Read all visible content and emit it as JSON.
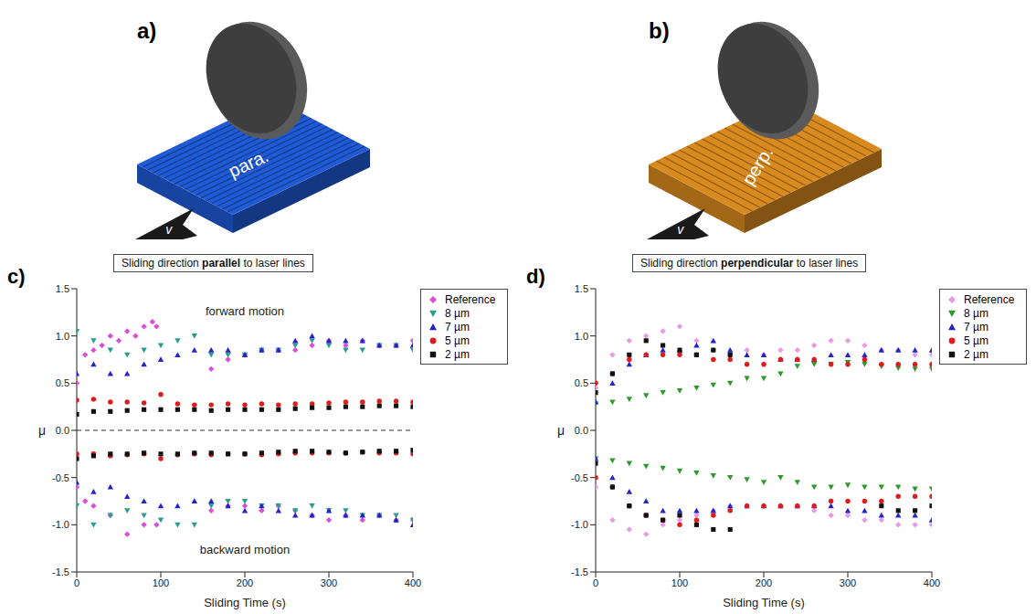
{
  "schematics": [
    {
      "panel": "a)",
      "label": "para.",
      "velocity": "v⃗",
      "color": "#1f5bd6"
    },
    {
      "panel": "b)",
      "label": "perp.",
      "velocity": "v⃗",
      "color": "#d98a1e"
    }
  ],
  "chart_data": [
    {
      "type": "scatter",
      "panel": "c)",
      "title": "Sliding direction parallel to laser lines",
      "x_label": "Sliding Time (s)",
      "y_label": "μ",
      "annotations": [
        "forward motion",
        "backward motion"
      ],
      "hlines": [
        0
      ],
      "xlim": [
        0,
        400
      ],
      "xticks": [
        0,
        100,
        200,
        300,
        400
      ],
      "ylim": [
        -1.5,
        1.5
      ],
      "yticks": [
        -1.5,
        {
          "value": -1,
          "label": "-1.0"
        },
        -0.5,
        {
          "value": 0,
          "label": "0.0"
        },
        0.5,
        {
          "value": 1,
          "label": "1.0"
        },
        1.5
      ],
      "legend": "right",
      "series": [
        {
          "name": "Reference",
          "color": "#d94fd9",
          "marker": "diamond",
          "x": [
            0,
            10,
            20,
            30,
            40,
            50,
            60,
            70,
            80,
            90,
            95,
            160,
            180,
            200,
            220,
            240,
            260,
            280,
            300,
            320,
            340,
            360,
            380,
            400,
            0,
            10,
            20,
            40,
            60,
            80,
            95,
            160,
            180,
            200,
            220,
            240,
            260,
            280,
            300,
            320,
            340,
            360,
            380,
            400
          ],
          "values": [
            0.5,
            0.8,
            0.85,
            0.9,
            1.0,
            0.95,
            1.05,
            1.0,
            1.1,
            1.15,
            1.1,
            0.65,
            0.75,
            0.8,
            0.85,
            0.85,
            0.85,
            0.9,
            0.95,
            0.9,
            0.95,
            0.9,
            0.9,
            0.95,
            -0.6,
            -0.75,
            -0.8,
            -0.9,
            -1.1,
            -1.0,
            -1.0,
            -0.85,
            -0.8,
            -0.8,
            -0.85,
            -0.8,
            -0.85,
            -0.9,
            -0.95,
            -0.9,
            -0.95,
            -0.9,
            -0.95,
            -0.95
          ]
        },
        {
          "name": "8 µm",
          "color": "#2a9d8f",
          "marker": "triangle_down",
          "x": [
            0,
            20,
            40,
            60,
            80,
            100,
            120,
            140,
            160,
            180,
            200,
            220,
            240,
            260,
            280,
            300,
            320,
            340,
            360,
            380,
            400,
            0,
            20,
            40,
            60,
            80,
            100,
            120,
            140,
            160,
            180,
            200,
            220,
            240,
            260,
            280,
            300,
            320,
            340,
            360,
            380,
            400
          ],
          "values": [
            1.05,
            0.95,
            0.85,
            0.8,
            0.85,
            0.9,
            0.95,
            1.0,
            0.8,
            0.8,
            0.8,
            0.85,
            0.85,
            0.9,
            0.95,
            0.9,
            0.85,
            0.85,
            0.9,
            0.9,
            0.85,
            -0.8,
            -1.0,
            -0.9,
            -0.85,
            -0.9,
            -0.95,
            -1.0,
            -1.0,
            -0.8,
            -0.75,
            -0.75,
            -0.8,
            -0.8,
            -0.85,
            -0.8,
            -0.85,
            -0.85,
            -0.9,
            -0.9,
            -0.9,
            -0.95
          ]
        },
        {
          "name": "7 µm",
          "color": "#2323c8",
          "marker": "triangle_up",
          "x": [
            0,
            20,
            40,
            60,
            80,
            100,
            120,
            140,
            160,
            180,
            200,
            220,
            240,
            260,
            280,
            300,
            320,
            340,
            360,
            380,
            400,
            0,
            20,
            40,
            60,
            80,
            100,
            120,
            140,
            160,
            180,
            200,
            220,
            240,
            260,
            280,
            300,
            320,
            340,
            360,
            380,
            400
          ],
          "values": [
            0.6,
            0.7,
            0.6,
            0.6,
            0.7,
            0.75,
            0.8,
            0.85,
            0.85,
            0.85,
            0.8,
            0.85,
            0.85,
            0.95,
            1.0,
            0.95,
            0.95,
            0.95,
            0.9,
            0.9,
            0.9,
            -0.55,
            -0.65,
            -0.6,
            -0.7,
            -0.75,
            -0.8,
            -0.8,
            -0.75,
            -0.75,
            -0.8,
            -0.85,
            -0.8,
            -0.85,
            -0.9,
            -0.9,
            -0.85,
            -0.9,
            -0.9,
            -0.9,
            -0.95,
            -1.0
          ]
        },
        {
          "name": "5 µm",
          "color": "#e01b1b",
          "marker": "circle",
          "x": [
            0,
            20,
            40,
            60,
            80,
            100,
            120,
            140,
            160,
            180,
            200,
            220,
            240,
            260,
            280,
            300,
            320,
            340,
            360,
            380,
            400,
            0,
            20,
            40,
            60,
            80,
            100,
            120,
            140,
            160,
            180,
            200,
            220,
            240,
            260,
            280,
            300,
            320,
            340,
            360,
            380,
            400
          ],
          "values": [
            0.32,
            0.33,
            0.3,
            0.3,
            0.29,
            0.38,
            0.28,
            0.27,
            0.27,
            0.28,
            0.27,
            0.28,
            0.27,
            0.28,
            0.28,
            0.29,
            0.3,
            0.3,
            0.31,
            0.31,
            0.3,
            -0.25,
            -0.25,
            -0.27,
            -0.26,
            -0.25,
            -0.3,
            -0.26,
            -0.25,
            -0.26,
            -0.25,
            -0.25,
            -0.26,
            -0.25,
            -0.24,
            -0.24,
            -0.24,
            -0.24,
            -0.23,
            -0.24,
            -0.24,
            -0.25
          ]
        },
        {
          "name": "2 µm",
          "color": "#111111",
          "marker": "square",
          "x": [
            0,
            20,
            40,
            60,
            80,
            100,
            120,
            140,
            160,
            180,
            200,
            220,
            240,
            260,
            280,
            300,
            320,
            340,
            360,
            380,
            400,
            0,
            20,
            40,
            60,
            80,
            100,
            120,
            140,
            160,
            180,
            200,
            220,
            240,
            260,
            280,
            300,
            320,
            340,
            360,
            380,
            400
          ],
          "values": [
            0.17,
            0.2,
            0.2,
            0.21,
            0.22,
            0.22,
            0.22,
            0.22,
            0.21,
            0.22,
            0.22,
            0.22,
            0.22,
            0.23,
            0.24,
            0.24,
            0.25,
            0.25,
            0.26,
            0.26,
            0.25,
            -0.3,
            -0.27,
            -0.25,
            -0.25,
            -0.24,
            -0.25,
            -0.25,
            -0.24,
            -0.24,
            -0.25,
            -0.25,
            -0.24,
            -0.23,
            -0.22,
            -0.22,
            -0.23,
            -0.24,
            -0.23,
            -0.22,
            -0.22,
            -0.21
          ]
        }
      ]
    },
    {
      "type": "scatter",
      "panel": "d)",
      "title": "Sliding direction perpendicular to laser lines",
      "x_label": "Sliding Time (s)",
      "y_label": "μ",
      "xlim": [
        0,
        400
      ],
      "xticks": [
        0,
        100,
        200,
        300,
        400
      ],
      "ylim": [
        -1.5,
        1.5
      ],
      "yticks": [
        -1.5,
        {
          "value": -1,
          "label": "-1.0"
        },
        -0.5,
        {
          "value": 0,
          "label": "0.0"
        },
        0.5,
        {
          "value": 1,
          "label": "1.0"
        },
        1.5
      ],
      "legend": "right",
      "series": [
        {
          "name": "Reference",
          "color": "#e79ae7",
          "marker": "diamond",
          "x": [
            0,
            20,
            40,
            60,
            80,
            100,
            120,
            140,
            160,
            180,
            200,
            220,
            240,
            260,
            280,
            300,
            320,
            340,
            360,
            380,
            400,
            0,
            20,
            40,
            60,
            80,
            100,
            120,
            140,
            160,
            180,
            200,
            220,
            240,
            260,
            280,
            300,
            320,
            340,
            360,
            380,
            400
          ],
          "values": [
            0.45,
            0.8,
            0.95,
            1.0,
            1.05,
            1.1,
            0.95,
            0.85,
            0.8,
            0.85,
            0.8,
            0.85,
            0.85,
            0.9,
            0.95,
            0.95,
            0.9,
            0.85,
            0.85,
            0.8,
            0.8,
            -0.6,
            -0.95,
            -1.05,
            -1.1,
            -1.0,
            -0.95,
            -0.9,
            -0.85,
            -0.8,
            -0.8,
            -0.8,
            -0.8,
            -0.8,
            -0.85,
            -0.9,
            -0.9,
            -0.95,
            -0.95,
            -1.0,
            -1.0,
            -1.0
          ]
        },
        {
          "name": "8 µm",
          "color": "#2e9a2e",
          "marker": "triangle_down",
          "x": [
            0,
            20,
            40,
            60,
            80,
            100,
            120,
            140,
            160,
            180,
            200,
            220,
            240,
            260,
            280,
            300,
            320,
            340,
            360,
            380,
            400,
            0,
            20,
            40,
            60,
            80,
            100,
            120,
            140,
            160,
            180,
            200,
            220,
            240,
            260,
            280,
            300,
            320,
            340,
            360,
            380,
            400
          ],
          "values": [
            0.28,
            0.3,
            0.33,
            0.37,
            0.4,
            0.42,
            0.45,
            0.48,
            0.5,
            0.55,
            0.55,
            0.6,
            0.68,
            0.7,
            0.7,
            0.72,
            0.7,
            0.68,
            0.66,
            0.65,
            0.65,
            -0.3,
            -0.32,
            -0.35,
            -0.38,
            -0.4,
            -0.43,
            -0.45,
            -0.48,
            -0.5,
            -0.52,
            -0.55,
            -0.5,
            -0.55,
            -0.6,
            -0.6,
            -0.58,
            -0.6,
            -0.6,
            -0.6,
            -0.62,
            -0.62
          ]
        },
        {
          "name": "7 µm",
          "color": "#2323c8",
          "marker": "triangle_up",
          "x": [
            0,
            20,
            40,
            60,
            80,
            100,
            120,
            140,
            160,
            180,
            200,
            220,
            240,
            260,
            280,
            300,
            320,
            340,
            360,
            380,
            400,
            0,
            20,
            40,
            60,
            80,
            100,
            120,
            140,
            160,
            180,
            200,
            220,
            240,
            260,
            280,
            300,
            320,
            340,
            360,
            380,
            400
          ],
          "values": [
            0.3,
            0.5,
            0.7,
            0.8,
            0.85,
            0.85,
            0.9,
            0.95,
            0.85,
            0.8,
            0.8,
            0.75,
            0.75,
            0.75,
            0.8,
            0.8,
            0.8,
            0.85,
            0.85,
            0.85,
            0.85,
            -0.3,
            -0.5,
            -0.65,
            -0.75,
            -0.85,
            -0.85,
            -0.85,
            -0.85,
            -0.8,
            -0.8,
            -0.8,
            -0.8,
            -0.8,
            -0.8,
            -0.8,
            -0.85,
            -0.85,
            -0.9,
            -0.9,
            -0.9,
            -0.95
          ]
        },
        {
          "name": "5 µm",
          "color": "#e01b1b",
          "marker": "circle",
          "x": [
            0,
            20,
            40,
            60,
            80,
            100,
            120,
            140,
            160,
            180,
            200,
            220,
            240,
            260,
            280,
            300,
            320,
            340,
            360,
            380,
            400,
            0,
            20,
            40,
            60,
            80,
            100,
            120,
            140,
            160,
            180,
            200,
            220,
            240,
            260,
            280,
            300,
            320,
            340,
            360,
            380,
            400
          ],
          "values": [
            0.5,
            0.6,
            0.75,
            0.8,
            0.8,
            0.8,
            0.8,
            0.75,
            0.75,
            0.7,
            0.7,
            0.75,
            0.75,
            0.75,
            0.7,
            0.7,
            0.75,
            0.7,
            0.7,
            0.7,
            0.7,
            -0.5,
            -0.6,
            -0.8,
            -0.9,
            -0.95,
            -1.0,
            -0.95,
            -0.9,
            -0.85,
            -0.8,
            -0.8,
            -0.8,
            -0.8,
            -0.8,
            -0.75,
            -0.75,
            -0.75,
            -0.75,
            -0.7,
            -0.7,
            -0.7
          ]
        },
        {
          "name": "2 µm",
          "color": "#111111",
          "marker": "square",
          "x": [
            0,
            20,
            40,
            60,
            80,
            100,
            120,
            140,
            160,
            0,
            20,
            40,
            60,
            80,
            100,
            120,
            140,
            160,
            340,
            360,
            380,
            400
          ],
          "values": [
            0.4,
            0.6,
            0.8,
            0.95,
            0.9,
            0.85,
            0.8,
            0.85,
            0.8,
            -0.35,
            -0.6,
            -0.8,
            -0.9,
            -0.95,
            -0.9,
            -1.0,
            -1.05,
            -1.05,
            -0.8,
            -0.85,
            -0.85,
            -0.8
          ]
        }
      ]
    }
  ]
}
